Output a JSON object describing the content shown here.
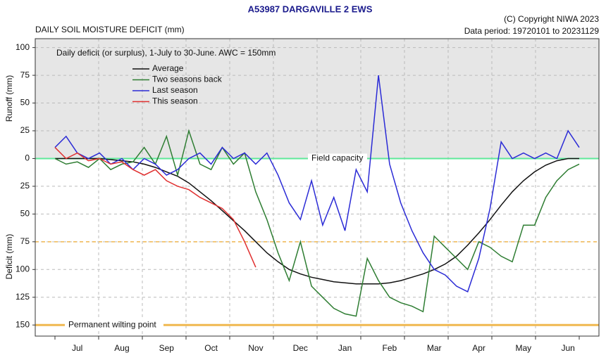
{
  "chart_data": {
    "type": "line",
    "title": "A53987  DARGAVILLE 2 EWS",
    "copyright": "(C) Copyright NIWA  2023",
    "chart_label": "DAILY SOIL MOISTURE DEFICIT (mm)",
    "data_period": "Data period:  19720101  to  20231129",
    "subtitle": "Daily deficit (or surplus), 1-July to 30-June.  AWC = 150mm",
    "y_label_upper": "Runoff (mm)",
    "y_label_lower": "Deficit (mm)",
    "field_capacity_label": "Field capacity",
    "wilting_label": "Permanent wilting point",
    "field_capacity": 0,
    "half_awc": -75,
    "wilting_point": -150,
    "categories": [
      null,
      null,
      "Jul",
      null,
      null,
      null,
      "Aug",
      null,
      null,
      null,
      "Sep",
      null,
      null,
      null,
      "Oct",
      null,
      null,
      null,
      "Nov",
      null,
      null,
      null,
      "Dec",
      null,
      null,
      null,
      "Jan",
      null,
      null,
      null,
      "Feb",
      null,
      null,
      null,
      "Mar",
      null,
      null,
      null,
      "Apr",
      null,
      null,
      null,
      "May",
      null,
      null,
      null,
      "Jun",
      null
    ],
    "series": [
      {
        "name": "Average",
        "color": "#111111",
        "values": [
          0,
          0,
          0,
          0,
          0,
          -1,
          -2,
          -3,
          -5,
          -8,
          -12,
          -16,
          -22,
          -30,
          -38,
          -47,
          -56,
          -65,
          -75,
          -85,
          -93,
          -100,
          -104,
          -107,
          -109,
          -111,
          -112,
          -113,
          -113,
          -113,
          -112,
          -110,
          -107,
          -104,
          -100,
          -95,
          -88,
          -78,
          -67,
          -55,
          -42,
          -30,
          -20,
          -12,
          -6,
          -2,
          0,
          0
        ]
      },
      {
        "name": "Two seasons back",
        "color": "#2e7d32",
        "values": [
          0,
          -5,
          -3,
          -8,
          0,
          -10,
          -5,
          -3,
          10,
          -5,
          20,
          -15,
          25,
          -5,
          -10,
          10,
          -5,
          5,
          -30,
          -55,
          -85,
          -110,
          -75,
          -115,
          -125,
          -135,
          -140,
          -142,
          -90,
          -110,
          -125,
          -130,
          -133,
          -138,
          -70,
          -80,
          -90,
          -100,
          -75,
          -80,
          -88,
          -93,
          -60,
          -60,
          -35,
          -20,
          -10,
          -5
        ]
      },
      {
        "name": "Last season",
        "color": "#2b2bd6",
        "values": [
          10,
          20,
          5,
          0,
          5,
          -5,
          0,
          -10,
          0,
          -5,
          -15,
          -10,
          0,
          5,
          -5,
          10,
          0,
          5,
          -5,
          5,
          -15,
          -40,
          -55,
          -20,
          -60,
          -35,
          -65,
          -10,
          -30,
          75,
          -5,
          -40,
          -65,
          -85,
          -100,
          -105,
          -115,
          -120,
          -90,
          -45,
          15,
          0,
          5,
          0,
          5,
          0,
          25,
          10
        ]
      },
      {
        "name": "This season",
        "color": "#e03030",
        "values": [
          10,
          0,
          5,
          -2,
          0,
          -5,
          -3,
          -10,
          -15,
          -10,
          -20,
          -25,
          -28,
          -35,
          -40,
          -45,
          -55,
          -75,
          -98,
          null,
          null,
          null,
          null,
          null,
          null,
          null,
          null,
          null,
          null,
          null,
          null,
          null,
          null,
          null,
          null,
          null,
          null,
          null,
          null,
          null,
          null,
          null,
          null,
          null,
          null,
          null,
          null,
          null
        ]
      }
    ],
    "ylim": [
      -160,
      108
    ],
    "yticks": [
      100,
      75,
      50,
      25,
      0,
      {
        "value": -25,
        "label": "25"
      },
      {
        "value": -50,
        "label": "50"
      },
      {
        "value": -75,
        "label": "75"
      },
      {
        "value": -100,
        "label": "100"
      },
      {
        "value": -125,
        "label": "125"
      },
      {
        "value": -150,
        "label": "150"
      }
    ],
    "grid": true
  }
}
